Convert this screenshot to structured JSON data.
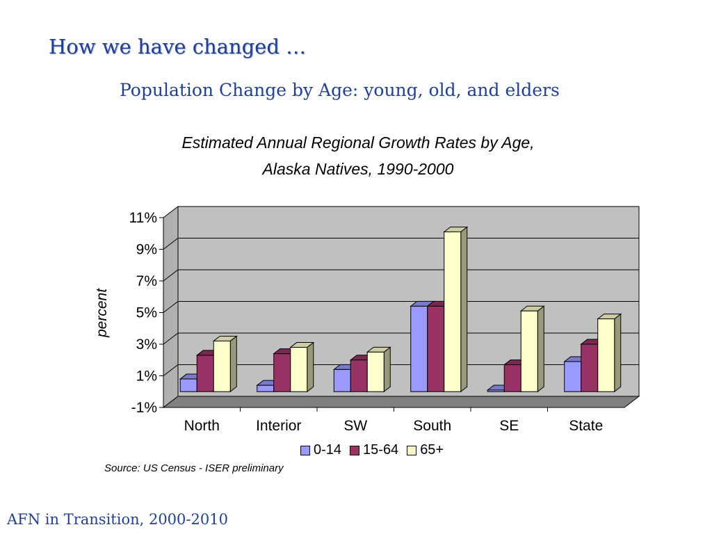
{
  "slide": {
    "title": "How we have changed …",
    "subtitle": "Population Change by Age:  young, old, and elders",
    "footer": "AFN in Transition, 2000-2010"
  },
  "chart_data": {
    "type": "bar",
    "title_line1": "Estimated Annual Regional Growth Rates by Age,",
    "title_line2": "Alaska Natives, 1990-2000",
    "xlabel": "",
    "ylabel": "percent",
    "ylim": [
      -1,
      11
    ],
    "yticks": [
      "11%",
      "9%",
      "7%",
      "5%",
      "3%",
      "1%",
      "-1%"
    ],
    "grid": true,
    "three_d": true,
    "legend_position": "bottom",
    "categories": [
      "North",
      "Interior",
      "SW",
      "South",
      "SE",
      "State"
    ],
    "series": [
      {
        "name": "0-14",
        "color": "#9999ff",
        "values": [
          0.8,
          0.4,
          1.4,
          5.4,
          0.1,
          1.9
        ]
      },
      {
        "name": "15-64",
        "color": "#993366",
        "values": [
          2.3,
          2.4,
          2.0,
          5.4,
          1.7,
          3.0
        ]
      },
      {
        "name": "65+",
        "color": "#ffffcc",
        "values": [
          3.2,
          2.8,
          2.5,
          10.1,
          5.1,
          4.6
        ]
      }
    ],
    "source": "Source:  US Census - ISER preliminary"
  }
}
